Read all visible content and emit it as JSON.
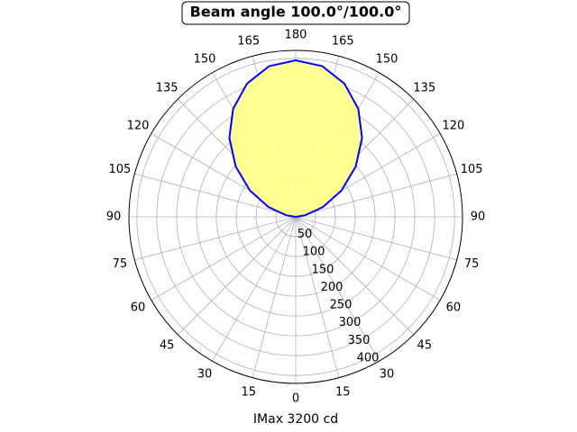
{
  "chart_data": {
    "type": "polar",
    "title": "Beam angle 100.0°/100.0°",
    "xlabel": "IMax 3200 cd",
    "theta": [
      90,
      100,
      110,
      120,
      130,
      140,
      150,
      160,
      170,
      180,
      190,
      200,
      210,
      220,
      230,
      240,
      250,
      260,
      270
    ],
    "series": [
      {
        "color": "#0000ff",
        "fill": "#ffff88",
        "values": [
          0,
          25,
          73,
          133,
          197,
          260,
          315,
          358,
          386,
          395,
          386,
          358,
          315,
          260,
          197,
          133,
          73,
          25,
          0
        ]
      }
    ],
    "rlim": [
      0,
      420
    ],
    "rticks": [
      50,
      100,
      150,
      200,
      250,
      300,
      350,
      400
    ],
    "thetaticks": [
      0,
      15,
      30,
      45,
      60,
      75,
      90,
      105,
      120,
      135,
      150,
      165,
      180,
      {
        "value": 195,
        "label": "165"
      },
      {
        "value": 210,
        "label": "150"
      },
      {
        "value": 225,
        "label": "135"
      },
      {
        "value": 240,
        "label": "120"
      },
      {
        "value": 255,
        "label": "105"
      },
      {
        "value": 270,
        "label": "90"
      },
      {
        "value": 285,
        "label": "75"
      },
      {
        "value": 300,
        "label": "60"
      },
      {
        "value": 315,
        "label": "45"
      },
      {
        "value": 330,
        "label": "30"
      },
      {
        "value": 345,
        "label": "15"
      }
    ],
    "grid": true
  }
}
